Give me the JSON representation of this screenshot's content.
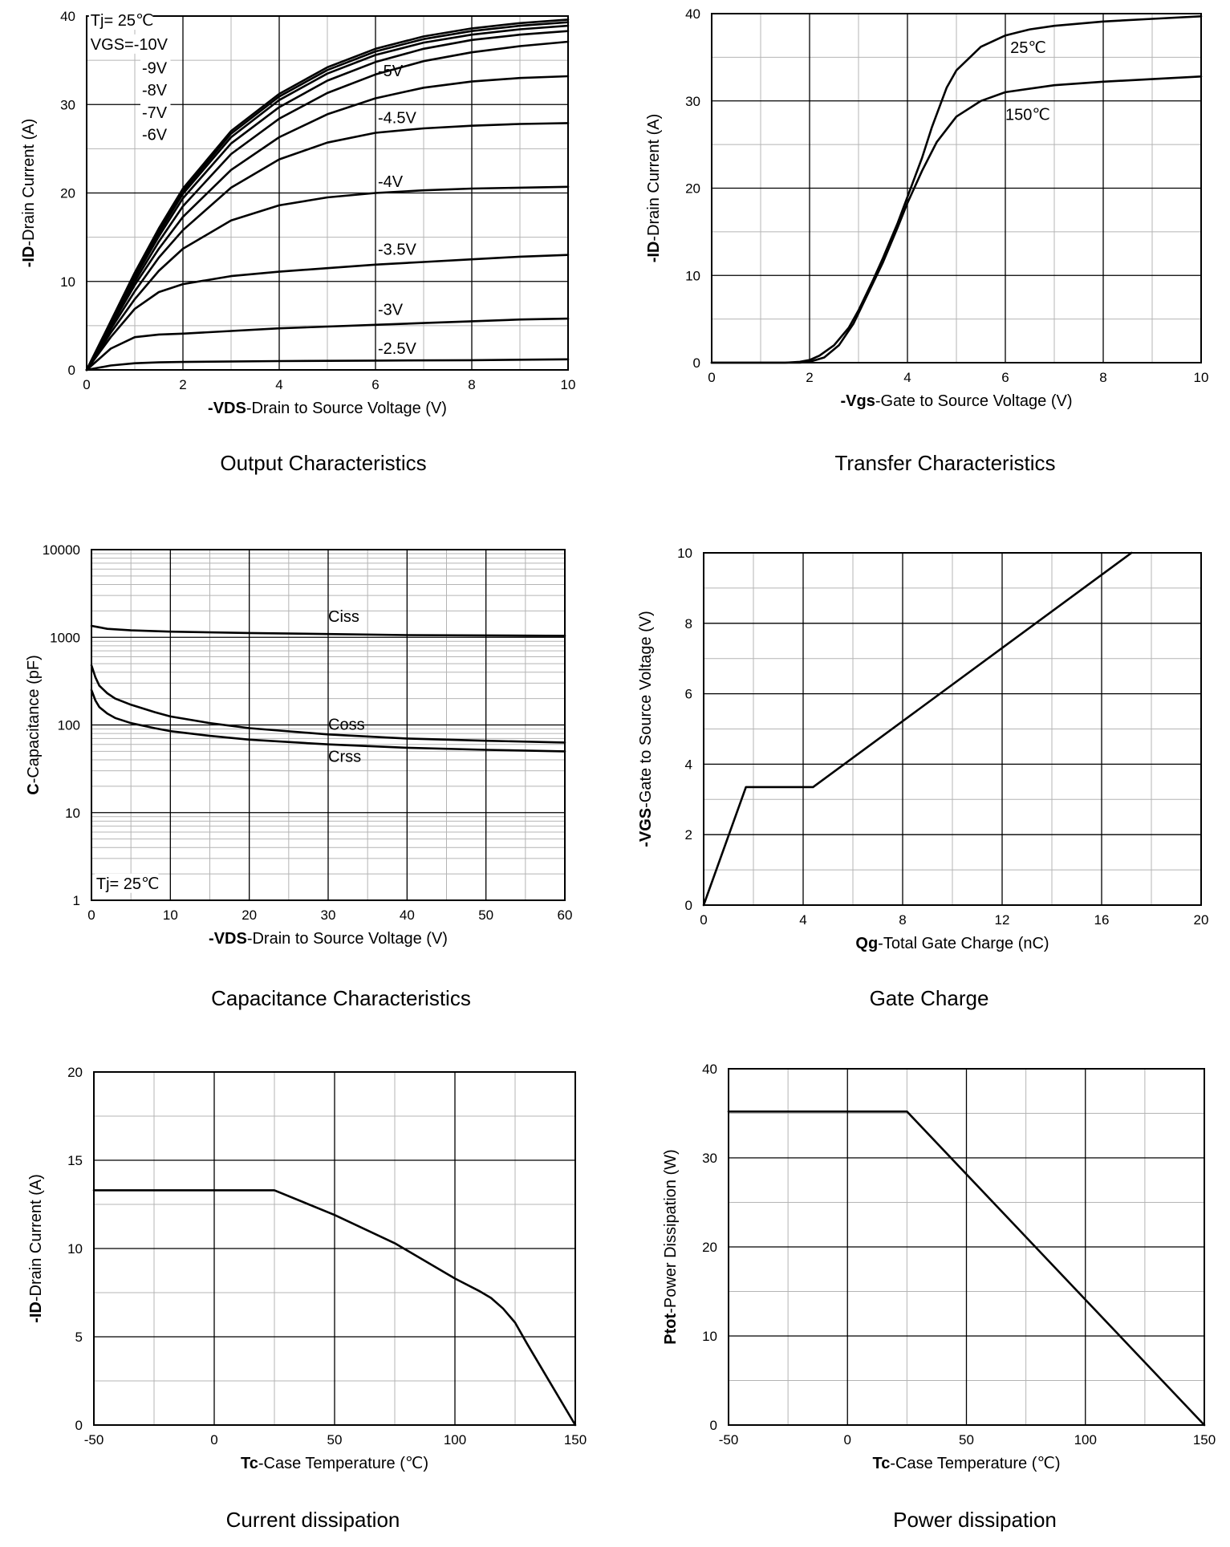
{
  "chart_data": [
    {
      "type": "line",
      "title": "Output Characteristics",
      "xlabel_bold": "-VDS",
      "xlabel_rest": "-Drain to Source Voltage (V)",
      "ylabel_bold": "-ID",
      "ylabel_rest": "-Drain Current (A)",
      "xlim": [
        0,
        10
      ],
      "ylim": [
        0,
        40
      ],
      "xticks": [
        0,
        2,
        4,
        6,
        8,
        10
      ],
      "yticks": [
        0,
        10,
        20,
        30,
        40
      ],
      "annotations": [
        "Tj= 25℃",
        "VGS=-10V",
        "-9V",
        "-8V",
        "-7V",
        "-6V"
      ],
      "series": [
        {
          "name": "-10V",
          "label": "",
          "x": [
            0,
            0.5,
            1,
            1.5,
            2,
            3,
            4,
            5,
            6,
            7,
            8,
            9,
            10
          ],
          "y": [
            0,
            5.5,
            11,
            16,
            20.5,
            27,
            31.2,
            34.2,
            36.3,
            37.7,
            38.6,
            39.2,
            39.6
          ]
        },
        {
          "name": "-9V",
          "label": "",
          "x": [
            0,
            0.5,
            1,
            1.5,
            2,
            3,
            4,
            5,
            6,
            7,
            8,
            9,
            10
          ],
          "y": [
            0,
            5.4,
            10.8,
            15.8,
            20.2,
            26.7,
            30.9,
            33.9,
            36,
            37.4,
            38.3,
            38.9,
            39.3
          ]
        },
        {
          "name": "-8V",
          "label": "",
          "x": [
            0,
            0.5,
            1,
            1.5,
            2,
            3,
            4,
            5,
            6,
            7,
            8,
            9,
            10
          ],
          "y": [
            0,
            5.3,
            10.6,
            15.5,
            19.9,
            26.3,
            30.5,
            33.5,
            35.6,
            37,
            37.9,
            38.5,
            38.9
          ]
        },
        {
          "name": "-7V",
          "label": "",
          "x": [
            0,
            0.5,
            1,
            1.5,
            2,
            3,
            4,
            5,
            6,
            7,
            8,
            9,
            10
          ],
          "y": [
            0,
            5.2,
            10.4,
            15.1,
            19.4,
            25.6,
            29.7,
            32.7,
            34.8,
            36.3,
            37.3,
            37.9,
            38.3
          ]
        },
        {
          "name": "-6V",
          "label": "",
          "x": [
            0,
            0.5,
            1,
            1.5,
            2,
            3,
            4,
            5,
            6,
            7,
            8,
            9,
            10
          ],
          "y": [
            0,
            5.1,
            10,
            14.5,
            18.5,
            24.4,
            28.4,
            31.3,
            33.4,
            34.9,
            35.9,
            36.6,
            37.1
          ]
        },
        {
          "name": "-5V",
          "label": "-5V",
          "x": [
            0,
            0.5,
            1,
            1.5,
            2,
            3,
            4,
            5,
            6,
            7,
            8,
            9,
            10
          ],
          "y": [
            0,
            4.9,
            9.6,
            13.7,
            17.3,
            22.6,
            26.3,
            28.9,
            30.7,
            31.9,
            32.6,
            33,
            33.2
          ]
        },
        {
          "name": "-4.5V",
          "label": "-4.5V",
          "x": [
            0,
            0.5,
            1,
            1.5,
            2,
            3,
            4,
            5,
            6,
            7,
            8,
            9,
            10
          ],
          "y": [
            0,
            4.6,
            8.9,
            12.7,
            15.8,
            20.6,
            23.8,
            25.7,
            26.8,
            27.3,
            27.6,
            27.8,
            27.9
          ]
        },
        {
          "name": "-4V",
          "label": "-4V",
          "x": [
            0,
            0.5,
            1,
            1.5,
            2,
            3,
            4,
            5,
            6,
            7,
            8,
            9,
            10
          ],
          "y": [
            0,
            4.2,
            8,
            11.2,
            13.7,
            16.9,
            18.6,
            19.5,
            20,
            20.3,
            20.5,
            20.6,
            20.7
          ]
        },
        {
          "name": "-3.5V",
          "label": "-3.5V",
          "x": [
            0,
            0.5,
            1,
            1.5,
            2,
            3,
            4,
            5,
            6,
            7,
            8,
            9,
            10
          ],
          "y": [
            0,
            3.7,
            6.9,
            8.8,
            9.7,
            10.6,
            11.1,
            11.5,
            11.9,
            12.2,
            12.5,
            12.8,
            13
          ]
        },
        {
          "name": "-3V",
          "label": "-3V",
          "x": [
            0,
            0.5,
            1,
            1.5,
            2,
            3,
            4,
            5,
            6,
            7,
            8,
            9,
            10
          ],
          "y": [
            0,
            2.4,
            3.7,
            4,
            4.1,
            4.4,
            4.7,
            4.9,
            5.1,
            5.3,
            5.5,
            5.7,
            5.8
          ]
        },
        {
          "name": "-2.5V",
          "label": "-2.5V",
          "x": [
            0,
            0.5,
            1,
            1.5,
            2,
            4,
            6,
            8,
            10
          ],
          "y": [
            0,
            0.5,
            0.75,
            0.85,
            0.9,
            1,
            1.05,
            1.1,
            1.2
          ]
        }
      ]
    },
    {
      "type": "line",
      "title": "Transfer Characteristics",
      "xlabel_bold": "-Vgs",
      "xlabel_rest": "-Gate to Source Voltage (V)",
      "ylabel_bold": "-ID",
      "ylabel_rest": "-Drain Current (A)",
      "xlim": [
        0,
        10
      ],
      "ylim": [
        0,
        40
      ],
      "xticks": [
        0,
        2,
        4,
        6,
        8,
        10
      ],
      "yticks": [
        0,
        10,
        20,
        30,
        40
      ],
      "series": [
        {
          "name": "25℃",
          "label": "25℃",
          "x": [
            0,
            1.5,
            1.8,
            2,
            2.2,
            2.5,
            2.8,
            3,
            3.3,
            3.5,
            3.8,
            4,
            4.3,
            4.5,
            4.8,
            5,
            5.5,
            6,
            6.5,
            7,
            8,
            9,
            10
          ],
          "y": [
            0,
            0,
            0.1,
            0.3,
            0.8,
            2,
            4,
            6,
            9.5,
            12,
            16,
            19,
            23.5,
            27,
            31.5,
            33.5,
            36.2,
            37.5,
            38.2,
            38.6,
            39.1,
            39.4,
            39.7
          ]
        },
        {
          "name": "150℃",
          "label": "150℃",
          "x": [
            0,
            1.8,
            2,
            2.3,
            2.6,
            2.9,
            3.2,
            3.5,
            3.8,
            4,
            4.3,
            4.6,
            5,
            5.5,
            6,
            7,
            8,
            9,
            10
          ],
          "y": [
            0,
            0,
            0.1,
            0.6,
            2,
            4.5,
            8,
            11.5,
            15.5,
            18.3,
            22,
            25.3,
            28.2,
            30,
            31,
            31.8,
            32.2,
            32.5,
            32.8
          ]
        }
      ]
    },
    {
      "type": "line",
      "title": "Capacitance Characteristics",
      "xlabel_bold": "-VDS",
      "xlabel_rest": "-Drain to Source Voltage (V)",
      "ylabel_bold": "C",
      "ylabel_rest": "-Capacitance (pF)",
      "yscale": "log",
      "xlim": [
        0,
        60
      ],
      "ylim": [
        1,
        10000
      ],
      "xticks": [
        0,
        10,
        20,
        30,
        40,
        50,
        60
      ],
      "yticks": [
        1,
        10,
        100,
        1000,
        10000
      ],
      "ytick_labels": [
        "1",
        "10",
        "100",
        "1000",
        "10000"
      ],
      "annotations": [
        "Tj= 25℃"
      ],
      "series": [
        {
          "name": "Ciss",
          "label": "Ciss",
          "x": [
            0,
            1,
            2,
            5,
            10,
            20,
            30,
            40,
            50,
            60
          ],
          "y": [
            1350,
            1300,
            1250,
            1200,
            1160,
            1120,
            1090,
            1060,
            1050,
            1040
          ]
        },
        {
          "name": "Coss",
          "label": "Coss",
          "x": [
            0,
            0.5,
            1,
            2,
            3,
            5,
            8,
            10,
            15,
            20,
            30,
            40,
            50,
            60
          ],
          "y": [
            480,
            350,
            280,
            230,
            200,
            170,
            140,
            125,
            105,
            92,
            78,
            70,
            66,
            63
          ]
        },
        {
          "name": "Crss",
          "label": "Crss",
          "x": [
            0,
            0.5,
            1,
            2,
            3,
            5,
            8,
            10,
            15,
            20,
            30,
            40,
            50,
            60
          ],
          "y": [
            250,
            190,
            160,
            135,
            120,
            105,
            92,
            85,
            75,
            68,
            60,
            55,
            52,
            50
          ]
        }
      ]
    },
    {
      "type": "line",
      "title": "Gate Charge",
      "xlabel_bold": "Qg",
      "xlabel_rest": "-Total  Gate Charge (nC)",
      "ylabel_bold": "-VGS",
      "ylabel_rest": "-Gate to Source Voltage (V)",
      "xlim": [
        0,
        20
      ],
      "ylim": [
        0,
        10
      ],
      "xticks": [
        0,
        4,
        8,
        12,
        16,
        20
      ],
      "yticks": [
        0,
        2,
        4,
        6,
        8,
        10
      ],
      "series": [
        {
          "name": "VGS",
          "label": "",
          "x": [
            0,
            1.7,
            4.4,
            17.2
          ],
          "y": [
            0,
            3.35,
            3.35,
            10
          ]
        }
      ]
    },
    {
      "type": "line",
      "title": "Current dissipation",
      "xlabel_bold": "Tc",
      "xlabel_rest": "-Case Temperature  (℃)",
      "ylabel_bold": "-ID",
      "ylabel_rest": "-Drain Current (A)",
      "xlim": [
        -50,
        150
      ],
      "ylim": [
        0,
        20
      ],
      "xticks": [
        -50,
        0,
        50,
        100,
        150
      ],
      "yticks": [
        0,
        5,
        10,
        15,
        20
      ],
      "series": [
        {
          "name": "ID",
          "label": "",
          "x": [
            -50,
            25,
            50,
            75,
            100,
            110,
            115,
            120,
            125,
            130,
            140,
            150
          ],
          "y": [
            13.3,
            13.3,
            11.9,
            10.3,
            8.3,
            7.6,
            7.2,
            6.6,
            5.8,
            4.6,
            2.3,
            0
          ]
        }
      ]
    },
    {
      "type": "line",
      "title": "Power dissipation",
      "xlabel_bold": "Tc",
      "xlabel_rest": "-Case Temperature  (℃)",
      "ylabel_bold": "Ptot",
      "ylabel_rest": "-Power Dissipation  (W)",
      "xlim": [
        -50,
        150
      ],
      "ylim": [
        0,
        40
      ],
      "xticks": [
        -50,
        0,
        50,
        100,
        150
      ],
      "yticks": [
        0,
        10,
        20,
        30,
        40
      ],
      "series": [
        {
          "name": "Ptot",
          "label": "",
          "x": [
            -50,
            25,
            150
          ],
          "y": [
            35.2,
            35.2,
            0
          ]
        }
      ]
    }
  ]
}
